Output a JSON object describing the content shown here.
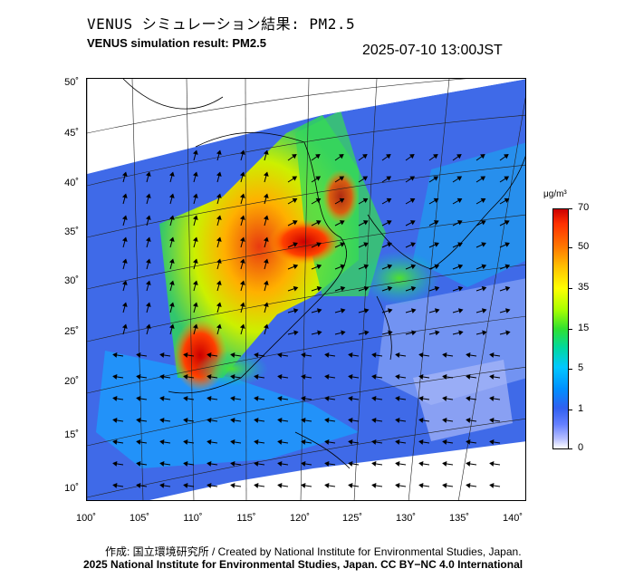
{
  "header": {
    "title_jp": "VENUS シミュレーション結果: PM2.5",
    "title_en": "VENUS simulation result: PM2.5",
    "timestamp": "2025-07-10 13:00JST"
  },
  "map": {
    "lat_labels": [
      "50˚",
      "45˚",
      "40˚",
      "35˚",
      "30˚",
      "25˚",
      "20˚",
      "15˚",
      "10˚"
    ],
    "lon_labels": [
      "100˚",
      "105˚",
      "110˚",
      "115˚",
      "120˚",
      "125˚",
      "130˚",
      "135˚",
      "140˚"
    ],
    "colors": {
      "ocean_low": "#3b64e6",
      "land": "#ffffff",
      "high": "#dd1100"
    }
  },
  "colorbar": {
    "unit": "μg/m³",
    "labels": [
      "70",
      "50",
      "35",
      "15",
      "5",
      "1",
      "0"
    ]
  },
  "footer": {
    "credit_jp": "作成: 国立環境研究所 / Created by National Institute for Environmental Studies, Japan.",
    "credit_en": "2025 National Institute for Environmental Studies, Japan. CC BY−NC 4.0 International"
  }
}
